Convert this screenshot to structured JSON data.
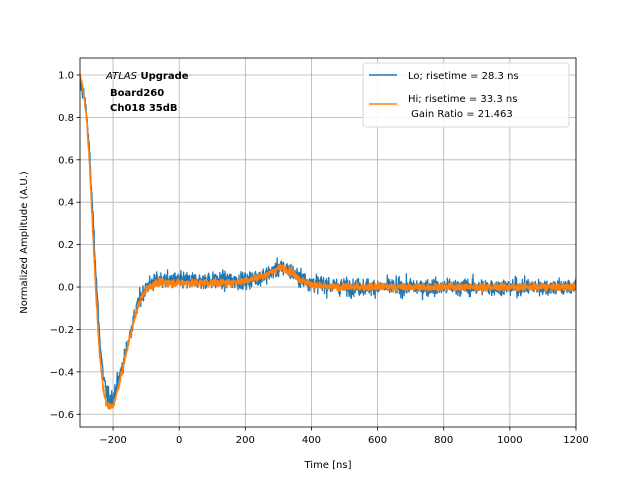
{
  "chart_data": {
    "type": "line",
    "xlabel": "Time [ns]",
    "ylabel": "Normalized Amplitude (A.U.)",
    "xlim": [
      -300,
      1200
    ],
    "ylim": [
      -0.66,
      1.08
    ],
    "xticks": [
      -200,
      0,
      200,
      400,
      600,
      800,
      1000,
      1200
    ],
    "yticks": [
      -0.6,
      -0.4,
      -0.2,
      0.0,
      0.2,
      0.4,
      0.6,
      0.8,
      1.0
    ],
    "xtick_labels": [
      "−200",
      "0",
      "200",
      "400",
      "600",
      "800",
      "1000",
      "1200"
    ],
    "ytick_labels": [
      "−0.6",
      "−0.4",
      "−0.2",
      "0.0",
      "0.2",
      "0.4",
      "0.6",
      "0.8",
      "1.0"
    ],
    "grid": true,
    "legend_position": "top-right",
    "annotation": {
      "line1_italic": "ATLAS",
      "line1_bold": " Upgrade",
      "line2": "Board260",
      "line3": "Ch018 35dB"
    },
    "legend_extra": " Gain Ratio = 21.463",
    "series": [
      {
        "name": "Lo; risetime = 28.3 ns",
        "color": "#1f77b4",
        "noise": 0.028,
        "x": [
          -300,
          -290,
          -280,
          -270,
          -260,
          -250,
          -240,
          -230,
          -220,
          -210,
          -200,
          -190,
          -180,
          -170,
          -160,
          -150,
          -140,
          -130,
          -120,
          -110,
          -100,
          -80,
          -60,
          -40,
          -20,
          0,
          50,
          100,
          150,
          200,
          250,
          280,
          300,
          320,
          340,
          370,
          400,
          450,
          500,
          600,
          700,
          800,
          900,
          1000,
          1100,
          1200
        ],
        "y": [
          0.96,
          0.92,
          0.82,
          0.6,
          0.3,
          0.02,
          -0.25,
          -0.42,
          -0.5,
          -0.53,
          -0.52,
          -0.47,
          -0.42,
          -0.36,
          -0.3,
          -0.23,
          -0.17,
          -0.11,
          -0.06,
          -0.03,
          0.0,
          0.02,
          0.03,
          0.03,
          0.03,
          0.03,
          0.03,
          0.03,
          0.03,
          0.03,
          0.05,
          0.07,
          0.09,
          0.09,
          0.07,
          0.04,
          0.02,
          0.01,
          0.0,
          0.0,
          0.0,
          0.0,
          0.0,
          0.0,
          0.0,
          0.0
        ]
      },
      {
        "name": "Hi; risetime = 33.3 ns",
        "color": "#ff7f0e",
        "noise": 0.012,
        "x": [
          -300,
          -290,
          -280,
          -270,
          -260,
          -250,
          -240,
          -230,
          -220,
          -210,
          -200,
          -190,
          -180,
          -170,
          -160,
          -150,
          -140,
          -130,
          -120,
          -110,
          -100,
          -80,
          -60,
          -40,
          -20,
          0,
          50,
          100,
          150,
          200,
          250,
          280,
          300,
          320,
          340,
          370,
          400,
          450,
          500,
          600,
          700,
          800,
          900,
          1000,
          1100,
          1200
        ],
        "y": [
          1.0,
          0.93,
          0.8,
          0.55,
          0.22,
          -0.08,
          -0.33,
          -0.48,
          -0.55,
          -0.57,
          -0.56,
          -0.51,
          -0.45,
          -0.38,
          -0.31,
          -0.24,
          -0.18,
          -0.12,
          -0.07,
          -0.04,
          -0.01,
          0.01,
          0.02,
          0.02,
          0.02,
          0.02,
          0.02,
          0.02,
          0.02,
          0.03,
          0.05,
          0.07,
          0.09,
          0.09,
          0.07,
          0.03,
          0.01,
          0.0,
          0.0,
          0.0,
          0.0,
          0.0,
          0.0,
          0.0,
          0.0,
          0.0
        ]
      }
    ]
  }
}
